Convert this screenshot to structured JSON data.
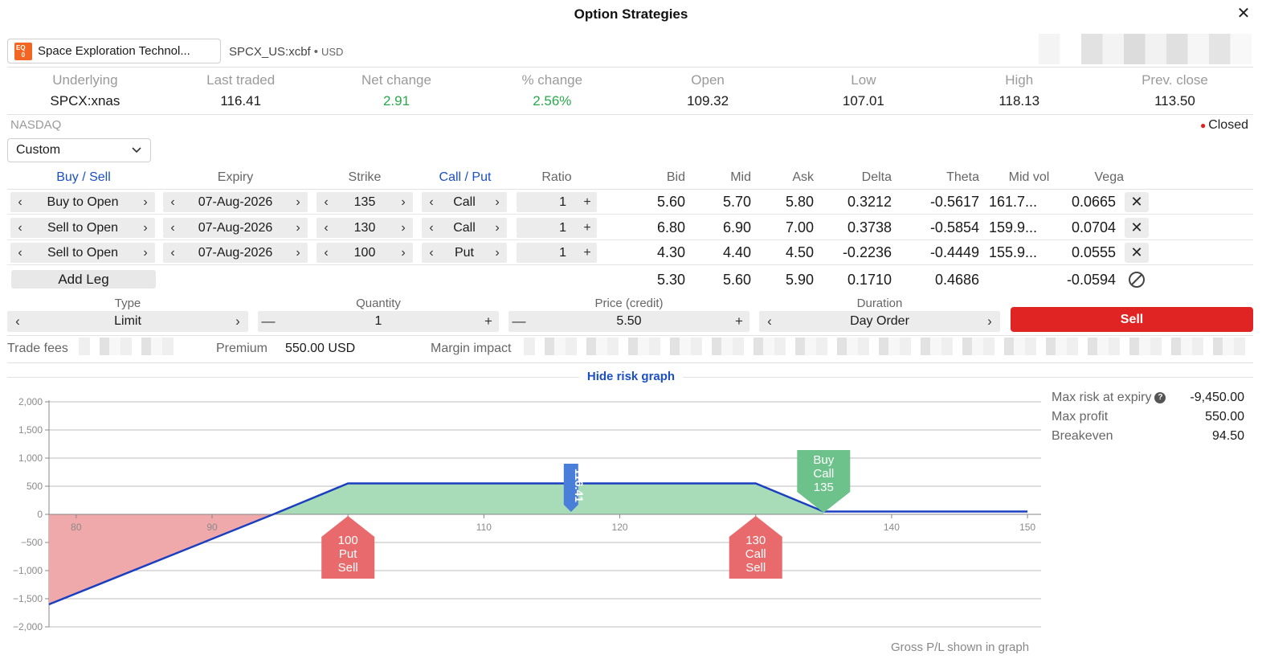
{
  "window": {
    "title": "Option Strategies",
    "close_label": "✕"
  },
  "instrument": {
    "name": "Space Exploration Technol...",
    "icon": "equity-icon",
    "symbol": "SPCX_US:xcbf",
    "separator": "•",
    "currency": "USD"
  },
  "quote": {
    "columns": [
      {
        "label": "Underlying",
        "value": "SPCX:xnas",
        "tone": "normal"
      },
      {
        "label": "Last traded",
        "value": "116.41",
        "tone": "normal"
      },
      {
        "label": "Net change",
        "value": "2.91",
        "tone": "green"
      },
      {
        "label": "% change",
        "value": "2.56%",
        "tone": "green"
      },
      {
        "label": "Open",
        "value": "109.32",
        "tone": "normal"
      },
      {
        "label": "Low",
        "value": "107.01",
        "tone": "normal"
      },
      {
        "label": "High",
        "value": "118.13",
        "tone": "normal"
      },
      {
        "label": "Prev. close",
        "value": "113.50",
        "tone": "normal"
      }
    ],
    "exchange": "NASDAQ",
    "market_status": "Closed"
  },
  "strategy": {
    "selected": "Custom"
  },
  "legs_header": {
    "buy_sell": "Buy / Sell",
    "expiry": "Expiry",
    "strike": "Strike",
    "call_put": "Call / Put",
    "ratio": "Ratio",
    "bid": "Bid",
    "mid": "Mid",
    "ask": "Ask",
    "delta": "Delta",
    "theta": "Theta",
    "mid_vol": "Mid vol",
    "vega": "Vega"
  },
  "legs": [
    {
      "action": "Buy to Open",
      "expiry": "07-Aug-2026",
      "strike": "135",
      "type": "Call",
      "ratio": "1",
      "bid": "5.60",
      "mid": "5.70",
      "ask": "5.80",
      "delta": "0.3212",
      "theta": "-0.5617",
      "mid_vol": "161.7...",
      "vega": "0.0665"
    },
    {
      "action": "Sell to Open",
      "expiry": "07-Aug-2026",
      "strike": "130",
      "type": "Call",
      "ratio": "1",
      "bid": "6.80",
      "mid": "6.90",
      "ask": "7.00",
      "delta": "0.3738",
      "theta": "-0.5854",
      "mid_vol": "159.9...",
      "vega": "0.0704"
    },
    {
      "action": "Sell to Open",
      "expiry": "07-Aug-2026",
      "strike": "100",
      "type": "Put",
      "ratio": "1",
      "bid": "4.30",
      "mid": "4.40",
      "ask": "4.50",
      "delta": "-0.2236",
      "theta": "-0.4449",
      "mid_vol": "155.9...",
      "vega": "0.0555"
    }
  ],
  "totals": {
    "add_leg": "Add Leg",
    "bid": "5.30",
    "mid": "5.60",
    "ask": "5.90",
    "delta": "0.1710",
    "theta": "0.4686",
    "vega": "-0.0594"
  },
  "order": {
    "type_label": "Type",
    "type_value": "Limit",
    "quantity_label": "Quantity",
    "quantity_value": "1",
    "price_label": "Price (credit)",
    "price_value": "5.50",
    "duration_label": "Duration",
    "duration_value": "Day Order",
    "submit_label": "Sell",
    "minus": "—",
    "plus": "+"
  },
  "fees": {
    "trade_fees_label": "Trade fees",
    "premium_label": "Premium",
    "premium_value": "550.00 USD",
    "margin_label": "Margin impact"
  },
  "risk_graph": {
    "toggle_label": "Hide risk graph",
    "footnote": "Gross P/L shown in graph",
    "stats": [
      {
        "label": "Max risk at expiry",
        "value": "-9,450.00",
        "help": "?"
      },
      {
        "label": "Max profit",
        "value": "550.00"
      },
      {
        "label": "Breakeven",
        "value": "94.50"
      }
    ]
  },
  "chart_data": {
    "type": "area",
    "x": [
      78,
      94.5,
      100,
      130,
      135,
      150
    ],
    "y": [
      -1600,
      0,
      550,
      550,
      50,
      50
    ],
    "xlim": [
      78,
      151
    ],
    "ylim": [
      -2000,
      2000
    ],
    "x_ticks": [
      80,
      90,
      100,
      110,
      120,
      130,
      140,
      150
    ],
    "y_ticks": [
      {
        "v": 2000,
        "t": "2,000"
      },
      {
        "v": 1500,
        "t": "1,500"
      },
      {
        "v": 1000,
        "t": "1,000"
      },
      {
        "v": 500,
        "t": "500"
      },
      {
        "v": 0,
        "t": "0"
      },
      {
        "v": -500,
        "t": "−500"
      },
      {
        "v": -1000,
        "t": "−1,000"
      },
      {
        "v": -1500,
        "t": "−1,500"
      },
      {
        "v": -2000,
        "t": "−2,000"
      }
    ],
    "current_price": {
      "x": 116.41,
      "label": "116.41"
    },
    "markers": [
      {
        "x": 100,
        "lines": [
          "100",
          "Put",
          "Sell"
        ],
        "kind": "sell"
      },
      {
        "x": 130,
        "lines": [
          "130",
          "Call",
          "Sell"
        ],
        "kind": "sell"
      },
      {
        "x": 135,
        "lines": [
          "Buy",
          "Call",
          "135"
        ],
        "kind": "buy"
      }
    ],
    "colors": {
      "profit": "#a8dcb8",
      "loss": "#f0a9ab",
      "line": "#1a3fc0",
      "sell": "#e86a6c",
      "buy": "#6cc28a",
      "price": "#4a7fd9"
    },
    "grid": true
  }
}
